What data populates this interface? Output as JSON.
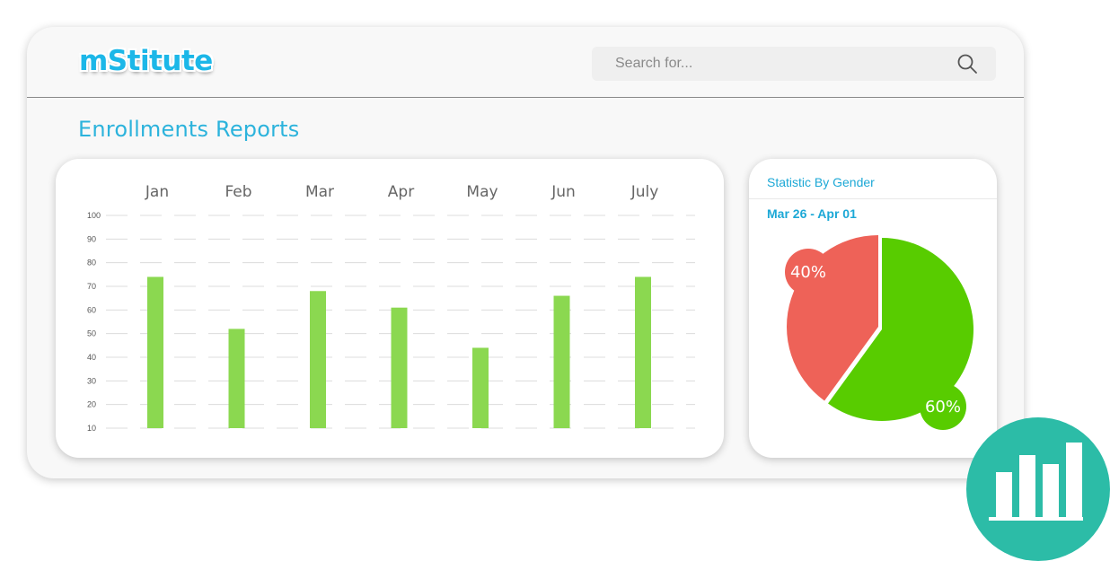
{
  "app": {
    "logo": "mStitute"
  },
  "search": {
    "placeholder": "Search for..."
  },
  "page": {
    "title": "Enrollments Reports"
  },
  "chart_data": [
    {
      "type": "bar",
      "categories": [
        "Jan",
        "Feb",
        "Mar",
        "Apr",
        "May",
        "Jun",
        "July"
      ],
      "values": [
        74,
        52,
        68,
        61,
        44,
        66,
        74
      ],
      "y_ticks": [
        10,
        20,
        30,
        40,
        50,
        60,
        70,
        80,
        90,
        100
      ],
      "ylim": [
        10,
        100
      ],
      "grid": true,
      "bar_color": "#8bd850"
    },
    {
      "type": "pie",
      "title": "Statistic By Gender",
      "subtitle": "Mar 26 - Apr 01",
      "slices": [
        {
          "label": "60%",
          "value": 60,
          "color": "#58cc00"
        },
        {
          "label": "40%",
          "value": 40,
          "color": "#ee6258"
        }
      ]
    }
  ],
  "colors": {
    "accent": "#1cb7e8",
    "badge": "#2cbca7"
  },
  "badge": {
    "icon": "bar-chart-icon"
  }
}
